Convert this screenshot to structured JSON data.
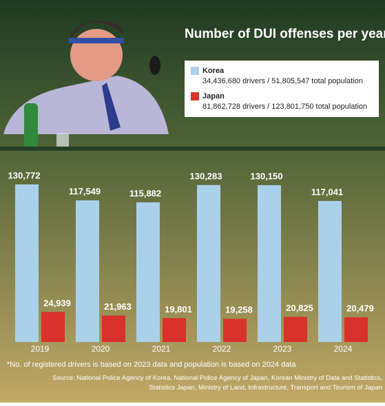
{
  "chart_data": {
    "type": "bar",
    "title": "Number of DUI offenses per year in Korea and Japan",
    "categories": [
      "2019",
      "2020",
      "2021",
      "2022",
      "2023",
      "2024"
    ],
    "series": [
      {
        "name": "Korea",
        "color": "#abd1ea",
        "description": "34,436,680 drivers / 51,805,547 total population",
        "values": [
          130772,
          117549,
          115882,
          130283,
          130150,
          117041
        ],
        "value_labels": [
          "130,772",
          "117,549",
          "115,882",
          "130,283",
          "130,150",
          "117,041"
        ]
      },
      {
        "name": "Japan",
        "color": "#d8322a",
        "description": "81,862,728 drivers / 123,801,750 total population",
        "values": [
          24939,
          21963,
          19801,
          19258,
          20825,
          20479
        ],
        "value_labels": [
          "24,939",
          "21,963",
          "19,801",
          "19,258",
          "20,825",
          "20,479"
        ]
      }
    ],
    "footnote": "*No. of registered drivers is based on 2023 data and population is based on 2024 data",
    "source": "Source:  National Police Agency of Korea, National Police Agency of Japan, Korean Ministry of Data and Statistics, Statistics Japan, Ministry of Land, Infrastructure, Transport and Tourism of Japan"
  }
}
